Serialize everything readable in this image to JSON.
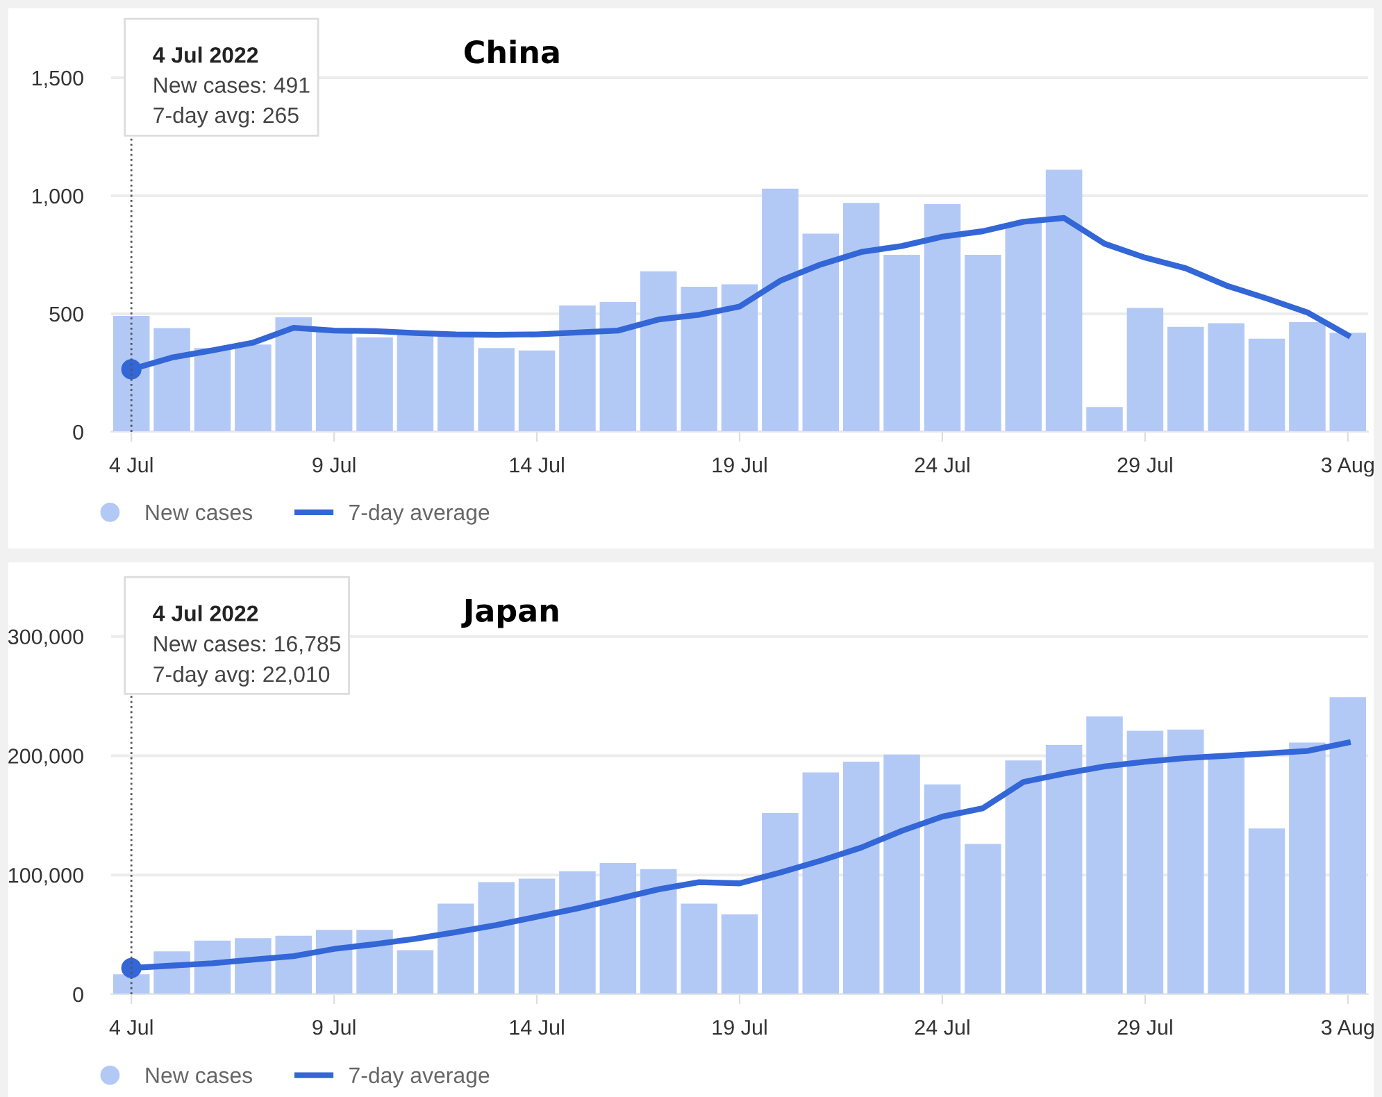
{
  "chart_data": [
    {
      "type": "bar",
      "title": "China",
      "x": [
        "2022-07-04",
        "2022-07-05",
        "2022-07-06",
        "2022-07-07",
        "2022-07-08",
        "2022-07-09",
        "2022-07-10",
        "2022-07-11",
        "2022-07-12",
        "2022-07-13",
        "2022-07-14",
        "2022-07-15",
        "2022-07-16",
        "2022-07-17",
        "2022-07-18",
        "2022-07-19",
        "2022-07-20",
        "2022-07-21",
        "2022-07-22",
        "2022-07-23",
        "2022-07-24",
        "2022-07-25",
        "2022-07-26",
        "2022-07-27",
        "2022-07-28",
        "2022-07-29",
        "2022-07-30",
        "2022-07-31",
        "2022-08-01",
        "2022-08-02",
        "2022-08-03"
      ],
      "series": [
        {
          "name": "New cases",
          "color": "#b3c9f5",
          "values": [
            491,
            440,
            355,
            370,
            485,
            425,
            400,
            410,
            405,
            355,
            345,
            535,
            550,
            680,
            615,
            625,
            1030,
            840,
            970,
            750,
            965,
            750,
            885,
            1110,
            105,
            525,
            445,
            460,
            395,
            465,
            420
          ]
        },
        {
          "name": "7-day average",
          "type": "line",
          "color": "#3366d6",
          "values": [
            265,
            315,
            345,
            378,
            441,
            429,
            427,
            419,
            413,
            411,
            413,
            421,
            429,
            476,
            496,
            531,
            640,
            709,
            762,
            787,
            827,
            850,
            890,
            906,
            797,
            738,
            693,
            620,
            565,
            506,
            409
          ]
        },
        {
          "type": "scatter",
          "color": "#3366d6",
          "marker": "circle",
          "x": [
            "2022-07-04"
          ],
          "values": [
            265
          ]
        }
      ],
      "xlim": [
        "2022-07-03T12:00",
        "2022-08-03T12:00"
      ],
      "xticks": [
        {
          "value": "2022-07-04",
          "label": "4 Jul"
        },
        {
          "value": "2022-07-09",
          "label": "9 Jul"
        },
        {
          "value": "2022-07-14",
          "label": "14 Jul"
        },
        {
          "value": "2022-07-19",
          "label": "19 Jul"
        },
        {
          "value": "2022-07-24",
          "label": "24 Jul"
        },
        {
          "value": "2022-07-29",
          "label": "29 Jul"
        },
        {
          "value": "2022-08-03",
          "label": "3 Aug"
        }
      ],
      "ylim": [
        0,
        1700
      ],
      "yticks": [
        0,
        {
          "value": 500,
          "label": "500"
        },
        {
          "value": 1000,
          "label": "1,000"
        },
        {
          "value": 1500,
          "label": "1,500"
        }
      ],
      "grid": "y",
      "legend": "bottom",
      "ref_lines": [
        {
          "axis": "x",
          "value": "2022-07-04",
          "color": "#555555",
          "line_style": "dotted"
        }
      ],
      "annotations": [
        "4 Jul 2022",
        "New cases: 491",
        "7-day avg: 265"
      ]
    },
    {
      "type": "bar",
      "title": "Japan",
      "x": [
        "2022-07-04",
        "2022-07-05",
        "2022-07-06",
        "2022-07-07",
        "2022-07-08",
        "2022-07-09",
        "2022-07-10",
        "2022-07-11",
        "2022-07-12",
        "2022-07-13",
        "2022-07-14",
        "2022-07-15",
        "2022-07-16",
        "2022-07-17",
        "2022-07-18",
        "2022-07-19",
        "2022-07-20",
        "2022-07-21",
        "2022-07-22",
        "2022-07-23",
        "2022-07-24",
        "2022-07-25",
        "2022-07-26",
        "2022-07-27",
        "2022-07-28",
        "2022-07-29",
        "2022-07-30",
        "2022-07-31",
        "2022-08-01",
        "2022-08-02",
        "2022-08-03"
      ],
      "series": [
        {
          "name": "New cases",
          "color": "#b3c9f5",
          "values": [
            16785,
            36000,
            45000,
            47000,
            49000,
            54000,
            54000,
            37000,
            76000,
            94000,
            97000,
            103000,
            110000,
            105000,
            76000,
            67000,
            152000,
            186000,
            195000,
            201000,
            176000,
            126000,
            196000,
            209000,
            233000,
            221000,
            222000,
            200000,
            139000,
            211000,
            249000
          ]
        },
        {
          "name": "7-day average",
          "type": "line",
          "color": "#3366d6",
          "values": [
            22010,
            24000,
            26000,
            29000,
            32000,
            38000,
            42000,
            46500,
            52000,
            58000,
            65000,
            72000,
            80000,
            88000,
            94000,
            93000,
            102000,
            112000,
            123000,
            137000,
            149000,
            156000,
            178000,
            185000,
            191000,
            195000,
            198000,
            200000,
            202000,
            204000,
            211000
          ]
        },
        {
          "type": "scatter",
          "color": "#3366d6",
          "marker": "circle",
          "x": [
            "2022-07-04"
          ],
          "values": [
            22010
          ]
        }
      ],
      "xlim": [
        "2022-07-03T12:00",
        "2022-08-03T12:00"
      ],
      "xticks": [
        {
          "value": "2022-07-04",
          "label": "4 Jul"
        },
        {
          "value": "2022-07-09",
          "label": "9 Jul"
        },
        {
          "value": "2022-07-14",
          "label": "14 Jul"
        },
        {
          "value": "2022-07-19",
          "label": "19 Jul"
        },
        {
          "value": "2022-07-24",
          "label": "24 Jul"
        },
        {
          "value": "2022-07-29",
          "label": "29 Jul"
        },
        {
          "value": "2022-08-03",
          "label": "3 Aug"
        }
      ],
      "ylim": [
        0,
        340000
      ],
      "yticks": [
        0,
        {
          "value": 100000,
          "label": "100,000"
        },
        {
          "value": 200000,
          "label": "200,000"
        },
        {
          "value": 300000,
          "label": "300,000"
        }
      ],
      "grid": "y",
      "legend": "bottom",
      "ref_lines": [
        {
          "axis": "x",
          "value": "2022-07-04",
          "color": "#555555",
          "line_style": "dotted"
        }
      ],
      "annotations": [
        "4 Jul 2022",
        "New cases: 16,785",
        "7-day avg: 22,010"
      ]
    }
  ]
}
